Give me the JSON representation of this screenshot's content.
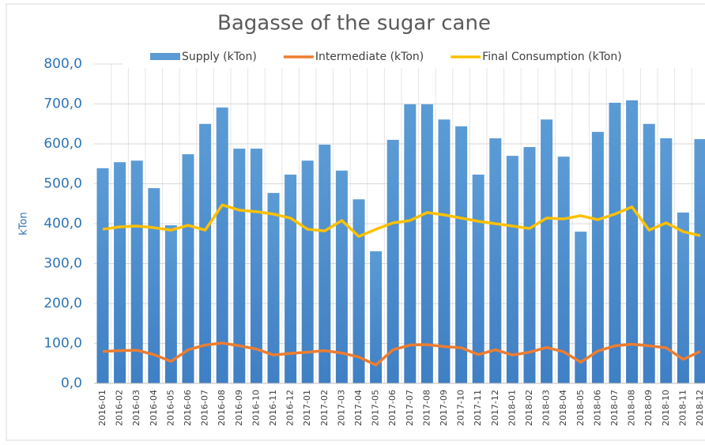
{
  "chart_data": {
    "type": "bar",
    "title": "Bagasse of the sugar cane",
    "y_label": "kTon",
    "categories": [
      "2016-01",
      "2016-02",
      "2016-03",
      "2016-04",
      "2016-05",
      "2016-06",
      "2016-07",
      "2016-08",
      "2016-09",
      "2016-10",
      "2016-11",
      "2016-12",
      "2017-01",
      "2017-02",
      "2017-03",
      "2017-04",
      "2017-05",
      "2017-06",
      "2017-07",
      "2017-08",
      "2017-09",
      "2017-10",
      "2017-11",
      "2017-12",
      "2018-01",
      "2018-02",
      "2018-03",
      "2018-04",
      "2018-05",
      "2018-06",
      "2018-07",
      "2018-08",
      "2018-09",
      "2018-10",
      "2018-11",
      "2018-12"
    ],
    "series": [
      {
        "name": "Supply (kTon)",
        "type": "bar",
        "color": "#5b9bd5",
        "values": [
          539,
          554,
          558,
          489,
          396,
          574,
          650,
          691,
          588,
          588,
          477,
          523,
          558,
          598,
          533,
          461,
          331,
          610,
          699,
          699,
          661,
          644,
          523,
          614,
          570,
          592,
          661,
          568,
          380,
          630,
          703,
          709,
          650,
          614,
          428,
          612
        ]
      },
      {
        "name": "Intermediate (kTon)",
        "type": "line",
        "color": "#ed7d31",
        "values": [
          80,
          82,
          83,
          72,
          55,
          84,
          96,
          101,
          94,
          86,
          71,
          75,
          78,
          82,
          76,
          66,
          46,
          84,
          96,
          97,
          92,
          89,
          72,
          84,
          71,
          78,
          90,
          79,
          53,
          81,
          94,
          98,
          94,
          89,
          60,
          80
        ]
      },
      {
        "name": "Final Consumption (kTon)",
        "type": "line",
        "color": "#ffc000",
        "values": [
          386,
          392,
          394,
          390,
          384,
          396,
          384,
          447,
          434,
          430,
          424,
          414,
          386,
          382,
          408,
          368,
          386,
          402,
          408,
          428,
          422,
          414,
          406,
          400,
          394,
          388,
          414,
          412,
          420,
          410,
          424,
          442,
          384,
          402,
          380,
          370
        ]
      }
    ],
    "ylim": [
      0,
      800
    ],
    "yticks": [
      {
        "value": 0,
        "label": "0,0"
      },
      {
        "value": 100,
        "label": "100,0"
      },
      {
        "value": 200,
        "label": "200,0"
      },
      {
        "value": 300,
        "label": "300,0"
      },
      {
        "value": 400,
        "label": "400,0"
      },
      {
        "value": 500,
        "label": "500,0"
      },
      {
        "value": 600,
        "label": "600,0"
      },
      {
        "value": 700,
        "label": "700,0"
      },
      {
        "value": 800,
        "label": "800,0"
      }
    ],
    "grid": true,
    "legend": "top"
  }
}
